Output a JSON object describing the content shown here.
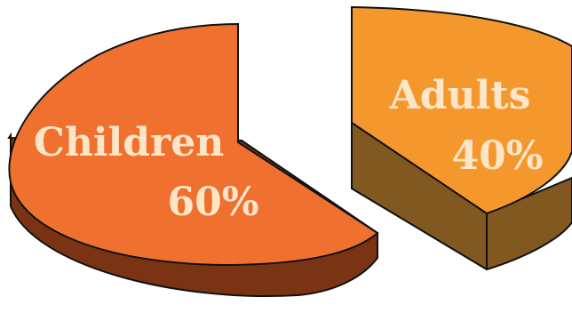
{
  "chart_data": {
    "type": "pie",
    "style": "3d-exploded",
    "slices": [
      {
        "label": "Children",
        "value": 60,
        "display": "60%",
        "top_color": "#f07030",
        "side_color": "#7a3414",
        "label_color": "#fde6c8"
      },
      {
        "label": "Adults",
        "value": 40,
        "display": "40%",
        "top_color": "#f4982e",
        "side_color": "#805820",
        "label_color": "#fde6c8"
      }
    ]
  }
}
